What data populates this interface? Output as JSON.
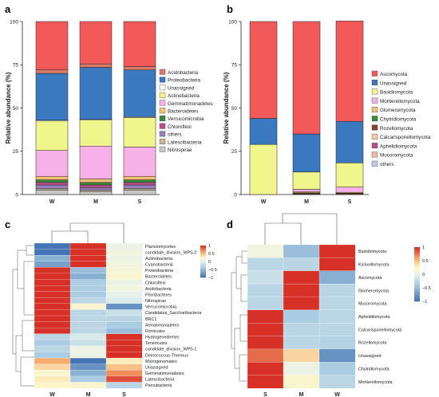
{
  "chart_data": [
    {
      "panel": "a",
      "type": "bar",
      "stacked": true,
      "ylabel": "Relative abundance (%)",
      "ylim": [
        0,
        100
      ],
      "yticks": [
        "0",
        "25",
        "50",
        "75",
        "100"
      ],
      "categories": [
        "W",
        "M",
        "S"
      ],
      "legend_position": "right",
      "series": [
        {
          "name": "Acidobacteria",
          "color": "#d97a6b",
          "values": [
            2,
            2,
            2
          ]
        },
        {
          "name": "Proteobacteria",
          "color": "#3a79c0",
          "values": [
            27,
            30,
            27
          ]
        },
        {
          "name": "Unassigned",
          "color": "#ffffff",
          "values": [
            0.5,
            0.5,
            0.5
          ]
        },
        {
          "name": "Actinobacteria",
          "color": "#f0f58c",
          "values": [
            17,
            15,
            17
          ]
        },
        {
          "name": "Gemmatimonadetes",
          "color": "#f6b2e8",
          "values": [
            15,
            19,
            17
          ]
        },
        {
          "name": "Bacteroidetes",
          "color": "#f5bf78",
          "values": [
            2,
            2,
            2
          ]
        },
        {
          "name": "Verrucomicrobia",
          "color": "#3a8a3a",
          "values": [
            1.5,
            1.5,
            1.5
          ]
        },
        {
          "name": "Chloroflexi",
          "color": "#b84e8c",
          "values": [
            1.5,
            1.5,
            1.5
          ]
        },
        {
          "name": "others",
          "color": "#9a7fbf",
          "values": [
            2,
            1.5,
            2
          ]
        },
        {
          "name": "Latescibacteria",
          "color": "#c8b89a",
          "values": [
            1,
            1,
            1
          ]
        },
        {
          "name": "Nitrospirae",
          "color": "#c8c8c8",
          "values": [
            2.5,
            1.5,
            2.5
          ]
        }
      ],
      "stack_order_bottom_to_top": [
        "Nitrospirae",
        "Latescibacteria",
        "others",
        "Chloroflexi",
        "Verrucomicrobia",
        "Bacteroidetes",
        "Gemmatimonadetes",
        "Actinobacteria",
        "Unassigned",
        "Proteobacteria",
        "Top"
      ],
      "top_segment": {
        "color": "#f25a5a",
        "values": [
          28,
          25,
          26
        ]
      }
    },
    {
      "panel": "b",
      "type": "bar",
      "stacked": true,
      "ylabel": "Relative abundance (%)",
      "ylim": [
        0,
        100
      ],
      "yticks": [
        "0",
        "25",
        "50",
        "75",
        "100"
      ],
      "categories": [
        "W",
        "M",
        "S"
      ],
      "legend_position": "right",
      "series": [
        {
          "name": "Ascomycota",
          "color": "#f25a5a",
          "values": [
            56,
            65,
            58
          ]
        },
        {
          "name": "Unassigned",
          "color": "#3a79c0",
          "values": [
            15,
            22,
            24
          ]
        },
        {
          "name": "Basidiomycota",
          "color": "#f0f58c",
          "values": [
            29,
            10,
            14
          ]
        },
        {
          "name": "Mortierellomycota",
          "color": "#f6b2e8",
          "values": [
            0,
            1.5,
            3
          ]
        },
        {
          "name": "Glomeromycota",
          "color": "#f5bf78",
          "values": [
            0,
            0.5,
            0.5
          ]
        },
        {
          "name": "Chytridiomycota",
          "color": "#3a8a3a",
          "values": [
            0,
            0.3,
            0.3
          ]
        },
        {
          "name": "Rozellomycota",
          "color": "#8b3d2a",
          "values": [
            0,
            0.5,
            0.5
          ]
        },
        {
          "name": "Calcarisporiellomycota",
          "color": "#f6c9a8",
          "values": [
            0,
            0.2,
            0
          ]
        },
        {
          "name": "Aphelidiomycota",
          "color": "#b84e8c",
          "values": [
            0,
            0,
            0
          ]
        },
        {
          "name": "Mucoromycota",
          "color": "#f0b8a8",
          "values": [
            0,
            0,
            0
          ]
        },
        {
          "name": "others",
          "color": "#c6c8e8",
          "values": [
            0,
            0,
            0
          ]
        }
      ]
    },
    {
      "panel": "c",
      "type": "heatmap",
      "columns": [
        "W",
        "M",
        "S"
      ],
      "colorbar_ticks": [
        "1",
        "0.5",
        "0",
        "−0.5",
        "−1"
      ],
      "rows": [
        "Planctomycetes",
        "candidate_division_WPS-2",
        "Actinobacteria",
        "Cyanobacteria",
        "Proteobacteria",
        "Bacteroidetes",
        "Chloroflexi",
        "Acidobacteria",
        "Fibrobacteres",
        "Nitrospirae",
        "Verrucomicrobia",
        "Candidatus_Saccharibacteria",
        "BRC1",
        "Armatimonadetes",
        "Firmicutes",
        "Hydrogenedentes",
        "Tenericutes",
        "candidate_division_WPS-1",
        "Deinococcus-Thermus",
        "Microgenomates",
        "Unassigned",
        "Gemmatimonadetes",
        "Latescibacteria",
        "Parcubacteria"
      ],
      "values": [
        [
          -1.0,
          1.0,
          0.05
        ],
        [
          -1.0,
          1.0,
          0.1
        ],
        [
          -0.6,
          1.0,
          0.05
        ],
        [
          -0.7,
          1.0,
          0.1
        ],
        [
          1.0,
          -0.5,
          0.15
        ],
        [
          1.0,
          -0.6,
          0.2
        ],
        [
          1.0,
          -0.4,
          0.05
        ],
        [
          1.0,
          -0.4,
          0.1
        ],
        [
          1.0,
          -0.4,
          0.0
        ],
        [
          1.0,
          -0.3,
          -0.1
        ],
        [
          1.0,
          0.2,
          -0.8
        ],
        [
          1.0,
          -0.3,
          -0.2
        ],
        [
          1.0,
          -0.3,
          -0.3
        ],
        [
          1.0,
          -0.3,
          -0.4
        ],
        [
          1.0,
          -0.3,
          -0.5
        ],
        [
          -0.3,
          -0.1,
          1.0
        ],
        [
          -0.4,
          -0.2,
          1.0
        ],
        [
          -0.3,
          0.05,
          1.0
        ],
        [
          -0.4,
          0.05,
          1.0
        ],
        [
          0.6,
          -1.0,
          0.3
        ],
        [
          0.4,
          -0.8,
          0.5
        ],
        [
          0.2,
          -0.6,
          0.7
        ],
        [
          0.3,
          -0.4,
          0.9
        ],
        [
          0.25,
          0.2,
          -0.3
        ]
      ]
    },
    {
      "panel": "d",
      "type": "heatmap",
      "columns": [
        "S",
        "M",
        "W"
      ],
      "colorbar_ticks": [
        "1",
        "0.5",
        "0",
        "−0.5",
        "−1"
      ],
      "rows": [
        "Basidiomycota",
        "Kickxellomycota",
        "Ascomycota",
        "Glomeromycota",
        "Mucoromycota",
        "Aphelidiomycota",
        "Calcarisporiellomycota",
        "Rozellomycota",
        "Unassigned",
        "Chytridiomycota",
        "Mortierellomycota"
      ],
      "values": [
        [
          0.1,
          -0.5,
          1.0
        ],
        [
          -0.3,
          -0.3,
          1.0
        ],
        [
          -0.2,
          1.0,
          -0.6
        ],
        [
          -0.3,
          1.0,
          -0.3
        ],
        [
          -0.3,
          1.0,
          -0.3
        ],
        [
          1.0,
          -0.4,
          -0.3
        ],
        [
          1.0,
          -0.3,
          -0.3
        ],
        [
          1.0,
          -0.3,
          -0.35
        ],
        [
          0.8,
          0.4,
          -0.8
        ],
        [
          1.0,
          0.05,
          -0.4
        ],
        [
          1.0,
          0.2,
          -0.3
        ]
      ]
    }
  ],
  "panels": {
    "a": "a",
    "b": "b",
    "c": "c",
    "d": "d"
  }
}
